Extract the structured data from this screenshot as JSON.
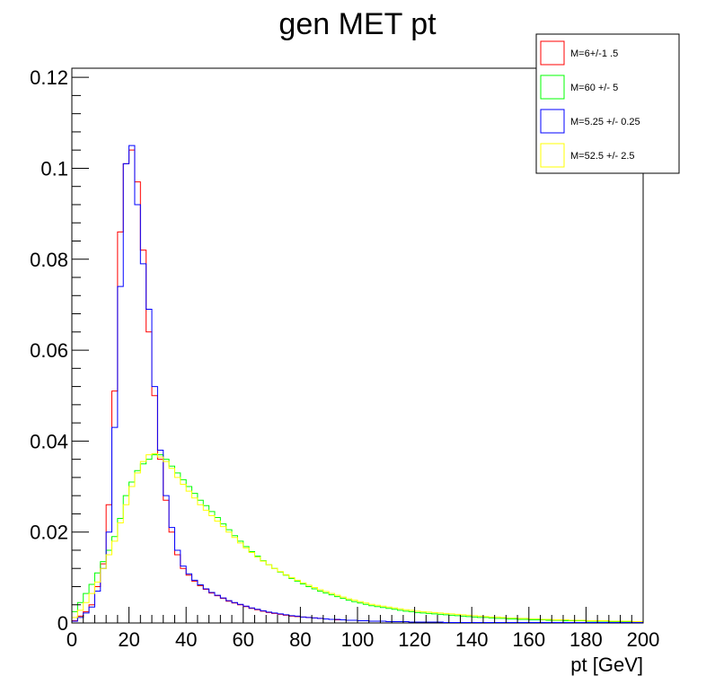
{
  "chart_data": {
    "type": "histogram",
    "title": "gen MET pt",
    "xlabel": "pt [GeV]",
    "ylabel": "",
    "xlim": [
      0,
      200
    ],
    "ylim": [
      0,
      0.122
    ],
    "bin_width": 2,
    "grid": false,
    "legend_position": "top-right",
    "x_ticks": [
      "0",
      "20",
      "40",
      "60",
      "80",
      "100",
      "120",
      "140",
      "160",
      "180",
      "200"
    ],
    "y_ticks": [
      "0",
      "0.02",
      "0.04",
      "0.06",
      "0.08",
      "0.1",
      "0.12"
    ],
    "series": [
      {
        "name": "M=6+/-1 .5",
        "color": "#ff0000",
        "values": [
          0.0005,
          0.0015,
          0.0025,
          0.004,
          0.008,
          0.013,
          0.026,
          0.051,
          0.086,
          0.101,
          0.104,
          0.097,
          0.082,
          0.064,
          0.05,
          0.036,
          0.027,
          0.02,
          0.015,
          0.012,
          0.0105,
          0.0092,
          0.0082,
          0.0074,
          0.0066,
          0.006,
          0.0054,
          0.0048,
          0.0044,
          0.004,
          0.0036,
          0.0032,
          0.0029,
          0.0026,
          0.0023,
          0.0021,
          0.0019,
          0.0017,
          0.0015,
          0.0014,
          0.0013,
          0.0012,
          0.0011,
          0.001,
          0.0009,
          0.0008,
          0.0007,
          0.0007,
          0.0006,
          0.0006,
          0.0005,
          0.0005,
          0.0004,
          0.0004,
          0.0004,
          0.0003,
          0.0003,
          0.0003,
          0.0003,
          0.0002,
          0.0002,
          0.0002,
          0.0002,
          0.0002,
          0.0002,
          0.0001,
          0.0001,
          0.0001,
          0.0001,
          0.0001,
          0.0001,
          0.0001,
          0.0001,
          0.0001,
          0.0001,
          0.0001,
          0.0001,
          0.0001,
          0.0001,
          0.0001,
          0.0001,
          0.0001,
          0.0001,
          0.0001,
          0.0001,
          0.0001,
          0.0001,
          0.0001,
          0.0001,
          0.0001,
          0.0001,
          0.0001,
          0.0001,
          0.0001,
          0.0001,
          0.0001,
          0.0001,
          0.0001,
          0.0001,
          0.0001
        ]
      },
      {
        "name": "M=60 +/- 5",
        "color": "#00ff00",
        "values": [
          0.0025,
          0.0045,
          0.0065,
          0.0085,
          0.011,
          0.0135,
          0.016,
          0.019,
          0.023,
          0.028,
          0.031,
          0.0335,
          0.035,
          0.036,
          0.037,
          0.037,
          0.036,
          0.0345,
          0.033,
          0.0315,
          0.03,
          0.0285,
          0.027,
          0.0258,
          0.0245,
          0.0232,
          0.0218,
          0.0205,
          0.0192,
          0.018,
          0.0168,
          0.0157,
          0.0147,
          0.0137,
          0.0128,
          0.012,
          0.0112,
          0.0105,
          0.0098,
          0.0092,
          0.0086,
          0.008,
          0.0075,
          0.007,
          0.0066,
          0.0062,
          0.0058,
          0.0054,
          0.005,
          0.0047,
          0.0044,
          0.0041,
          0.0038,
          0.0036,
          0.0034,
          0.0032,
          0.003,
          0.0028,
          0.0026,
          0.0025,
          0.0023,
          0.0022,
          0.0021,
          0.002,
          0.0019,
          0.0018,
          0.0017,
          0.0016,
          0.0015,
          0.0014,
          0.0013,
          0.0012,
          0.0012,
          0.0011,
          0.001,
          0.001,
          0.0009,
          0.0009,
          0.0008,
          0.0008,
          0.0007,
          0.0007,
          0.0007,
          0.0006,
          0.0006,
          0.0006,
          0.0005,
          0.0005,
          0.0005,
          0.0005,
          0.0004,
          0.0004,
          0.0004,
          0.0004,
          0.0003,
          0.0003,
          0.0003,
          0.0003,
          0.0003,
          0.0003
        ]
      },
      {
        "name": "M=5.25 +/- 0.25",
        "color": "#0000ff",
        "values": [
          0.0004,
          0.0012,
          0.0022,
          0.0035,
          0.007,
          0.012,
          0.02,
          0.043,
          0.074,
          0.101,
          0.105,
          0.092,
          0.079,
          0.069,
          0.052,
          0.038,
          0.028,
          0.021,
          0.016,
          0.0125,
          0.0108,
          0.0094,
          0.0084,
          0.0075,
          0.0067,
          0.0061,
          0.0055,
          0.0049,
          0.0045,
          0.0041,
          0.0037,
          0.0033,
          0.003,
          0.0027,
          0.0024,
          0.0022,
          0.002,
          0.0018,
          0.0016,
          0.0015,
          0.0013,
          0.0012,
          0.0011,
          0.001,
          0.0009,
          0.0008,
          0.0008,
          0.0007,
          0.0006,
          0.0006,
          0.0005,
          0.0005,
          0.0004,
          0.0004,
          0.0004,
          0.0003,
          0.0003,
          0.0003,
          0.0003,
          0.0002,
          0.0002,
          0.0002,
          0.0002,
          0.0002,
          0.0002,
          0.0001,
          0.0001,
          0.0001,
          0.0001,
          0.0001,
          0.0001,
          0.0001,
          0.0001,
          0.0001,
          0.0001,
          0.0001,
          0.0001,
          0.0001,
          0.0001,
          0.0001,
          0.0001,
          0.0001,
          0.0001,
          0.0001,
          0.0001,
          0.0001,
          0.0001,
          0.0001,
          0.0001,
          0.0001,
          0.0001,
          0.0001,
          0.0001,
          0.0001,
          0.0001,
          0.0001,
          0.0001,
          0.0001,
          0.0001,
          0.0001
        ]
      },
      {
        "name": "M=52.5 +/- 2.5",
        "color": "#ffff00",
        "values": [
          0.0012,
          0.0028,
          0.0045,
          0.0065,
          0.009,
          0.012,
          0.015,
          0.018,
          0.022,
          0.026,
          0.03,
          0.033,
          0.0355,
          0.037,
          0.0372,
          0.0365,
          0.0355,
          0.034,
          0.032,
          0.0305,
          0.029,
          0.0275,
          0.026,
          0.0248,
          0.0236,
          0.0224,
          0.0212,
          0.02,
          0.0188,
          0.0176,
          0.0165,
          0.0155,
          0.0145,
          0.0136,
          0.0128,
          0.012,
          0.0113,
          0.0106,
          0.01,
          0.0094,
          0.0088,
          0.0083,
          0.0078,
          0.0073,
          0.0069,
          0.0065,
          0.0061,
          0.0057,
          0.0053,
          0.005,
          0.0047,
          0.0044,
          0.0041,
          0.0039,
          0.0037,
          0.0035,
          0.0033,
          0.0031,
          0.0029,
          0.0028,
          0.0026,
          0.0025,
          0.0024,
          0.0023,
          0.0022,
          0.0021,
          0.002,
          0.0019,
          0.0018,
          0.0017,
          0.0016,
          0.0015,
          0.0014,
          0.0013,
          0.0013,
          0.0012,
          0.0011,
          0.0011,
          0.001,
          0.001,
          0.0009,
          0.0009,
          0.0008,
          0.0008,
          0.0007,
          0.0007,
          0.0007,
          0.0006,
          0.0006,
          0.0006,
          0.0005,
          0.0005,
          0.0005,
          0.0005,
          0.0004,
          0.0004,
          0.0004,
          0.0004,
          0.0003,
          0.0003
        ]
      }
    ]
  }
}
